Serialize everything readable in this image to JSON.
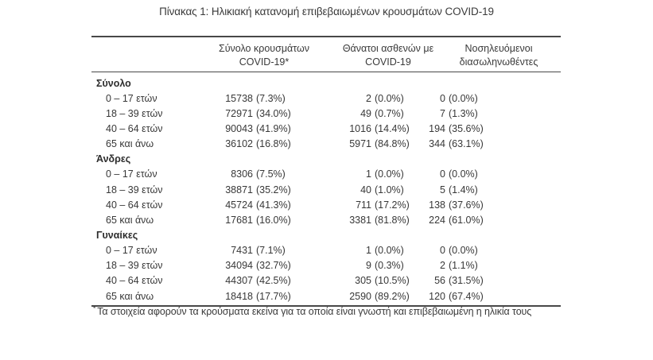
{
  "title": "Πίνακας 1: Ηλικιακή κατανομή επιβεβαιωμένων κρουσμάτων COVID-19",
  "table": {
    "columns": [
      {
        "line1": "Σύνολο κρουσμάτων",
        "line2": "COVID-19*"
      },
      {
        "line1": "Θάνατοι ασθενών με",
        "line2": "COVID-19"
      },
      {
        "line1": "Νοσηλευόμενοι",
        "line2": "διασωληνωθέντες"
      }
    ],
    "sections": [
      {
        "label": "Σύνολο",
        "rows": [
          {
            "label": "0 – 17 ετών",
            "cases": "15738",
            "cases_pct": "(7.3%)",
            "deaths": "2",
            "deaths_pct": "(0.0%)",
            "intubated": "0",
            "intubated_pct": "(0.0%)"
          },
          {
            "label": "18 – 39 ετών",
            "cases": "72971",
            "cases_pct": "(34.0%)",
            "deaths": "49",
            "deaths_pct": "(0.7%)",
            "intubated": "7",
            "intubated_pct": "(1.3%)"
          },
          {
            "label": "40 – 64 ετών",
            "cases": "90043",
            "cases_pct": "(41.9%)",
            "deaths": "1016",
            "deaths_pct": "(14.4%)",
            "intubated": "194",
            "intubated_pct": "(35.6%)"
          },
          {
            "label": "65 και άνω",
            "cases": "36102",
            "cases_pct": "(16.8%)",
            "deaths": "5971",
            "deaths_pct": "(84.8%)",
            "intubated": "344",
            "intubated_pct": "(63.1%)"
          }
        ]
      },
      {
        "label": "Άνδρες",
        "rows": [
          {
            "label": "0 – 17 ετών",
            "cases": "8306",
            "cases_pct": "(7.5%)",
            "deaths": "1",
            "deaths_pct": "(0.0%)",
            "intubated": "0",
            "intubated_pct": "(0.0%)"
          },
          {
            "label": "18 – 39 ετών",
            "cases": "38871",
            "cases_pct": "(35.2%)",
            "deaths": "40",
            "deaths_pct": "(1.0%)",
            "intubated": "5",
            "intubated_pct": "(1.4%)"
          },
          {
            "label": "40 – 64 ετών",
            "cases": "45724",
            "cases_pct": "(41.3%)",
            "deaths": "711",
            "deaths_pct": "(17.2%)",
            "intubated": "138",
            "intubated_pct": "(37.6%)"
          },
          {
            "label": "65 και άνω",
            "cases": "17681",
            "cases_pct": "(16.0%)",
            "deaths": "3381",
            "deaths_pct": "(81.8%)",
            "intubated": "224",
            "intubated_pct": "(61.0%)"
          }
        ]
      },
      {
        "label": "Γυναίκες",
        "rows": [
          {
            "label": "0 – 17 ετών",
            "cases": "7431",
            "cases_pct": "(7.1%)",
            "deaths": "1",
            "deaths_pct": "(0.0%)",
            "intubated": "0",
            "intubated_pct": "(0.0%)"
          },
          {
            "label": "18 – 39 ετών",
            "cases": "34094",
            "cases_pct": "(32.7%)",
            "deaths": "9",
            "deaths_pct": "(0.3%)",
            "intubated": "2",
            "intubated_pct": "(1.1%)"
          },
          {
            "label": "40 – 64 ετών",
            "cases": "44307",
            "cases_pct": "(42.5%)",
            "deaths": "305",
            "deaths_pct": "(10.5%)",
            "intubated": "56",
            "intubated_pct": "(31.5%)"
          },
          {
            "label": "65 και άνω",
            "cases": "18418",
            "cases_pct": "(17.7%)",
            "deaths": "2590",
            "deaths_pct": "(89.2%)",
            "intubated": "120",
            "intubated_pct": "(67.4%)"
          }
        ]
      }
    ]
  },
  "footnote": {
    "marker": "*",
    "text": "Τα στοιχεία αφορούν τα κρούσματα εκείνα για τα οποία είναι γνωστή και επιβεβαιωμένη η ηλικία τους"
  }
}
